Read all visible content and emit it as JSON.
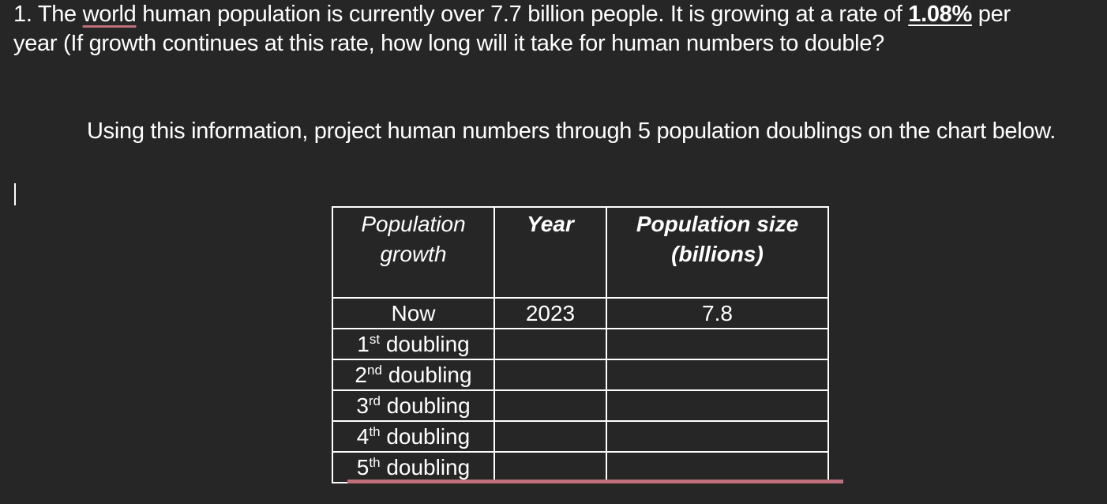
{
  "question": {
    "parts": [
      "1. The ",
      "world",
      " human population is currently over 7.7 billion people. It is growing at a rate of ",
      "1.08%",
      " per year (If growth continues at this rate, how long will it take for human numbers to double?"
    ]
  },
  "instruction": "Using this information, project human numbers through 5 population doublings on the chart below.",
  "table": {
    "headers": [
      "Population growth",
      "Year",
      "Population size (billions)"
    ],
    "rows": [
      {
        "growth": "Now",
        "year": "2023",
        "size": "7.8"
      },
      {
        "growth": {
          "number": "1",
          "suffix": "st",
          "text": "doubling"
        }
      },
      {
        "growth": {
          "number": "2",
          "suffix": "nd",
          "text": "doubling"
        }
      },
      {
        "growth": {
          "number": "3",
          "suffix": "rd",
          "text": "doubling"
        }
      },
      {
        "growth": {
          "number": "4",
          "suffix": "th",
          "text": "doubling"
        }
      },
      {
        "growth": {
          "number": "5",
          "suffix": "th",
          "text": "doubling"
        }
      }
    ]
  }
}
